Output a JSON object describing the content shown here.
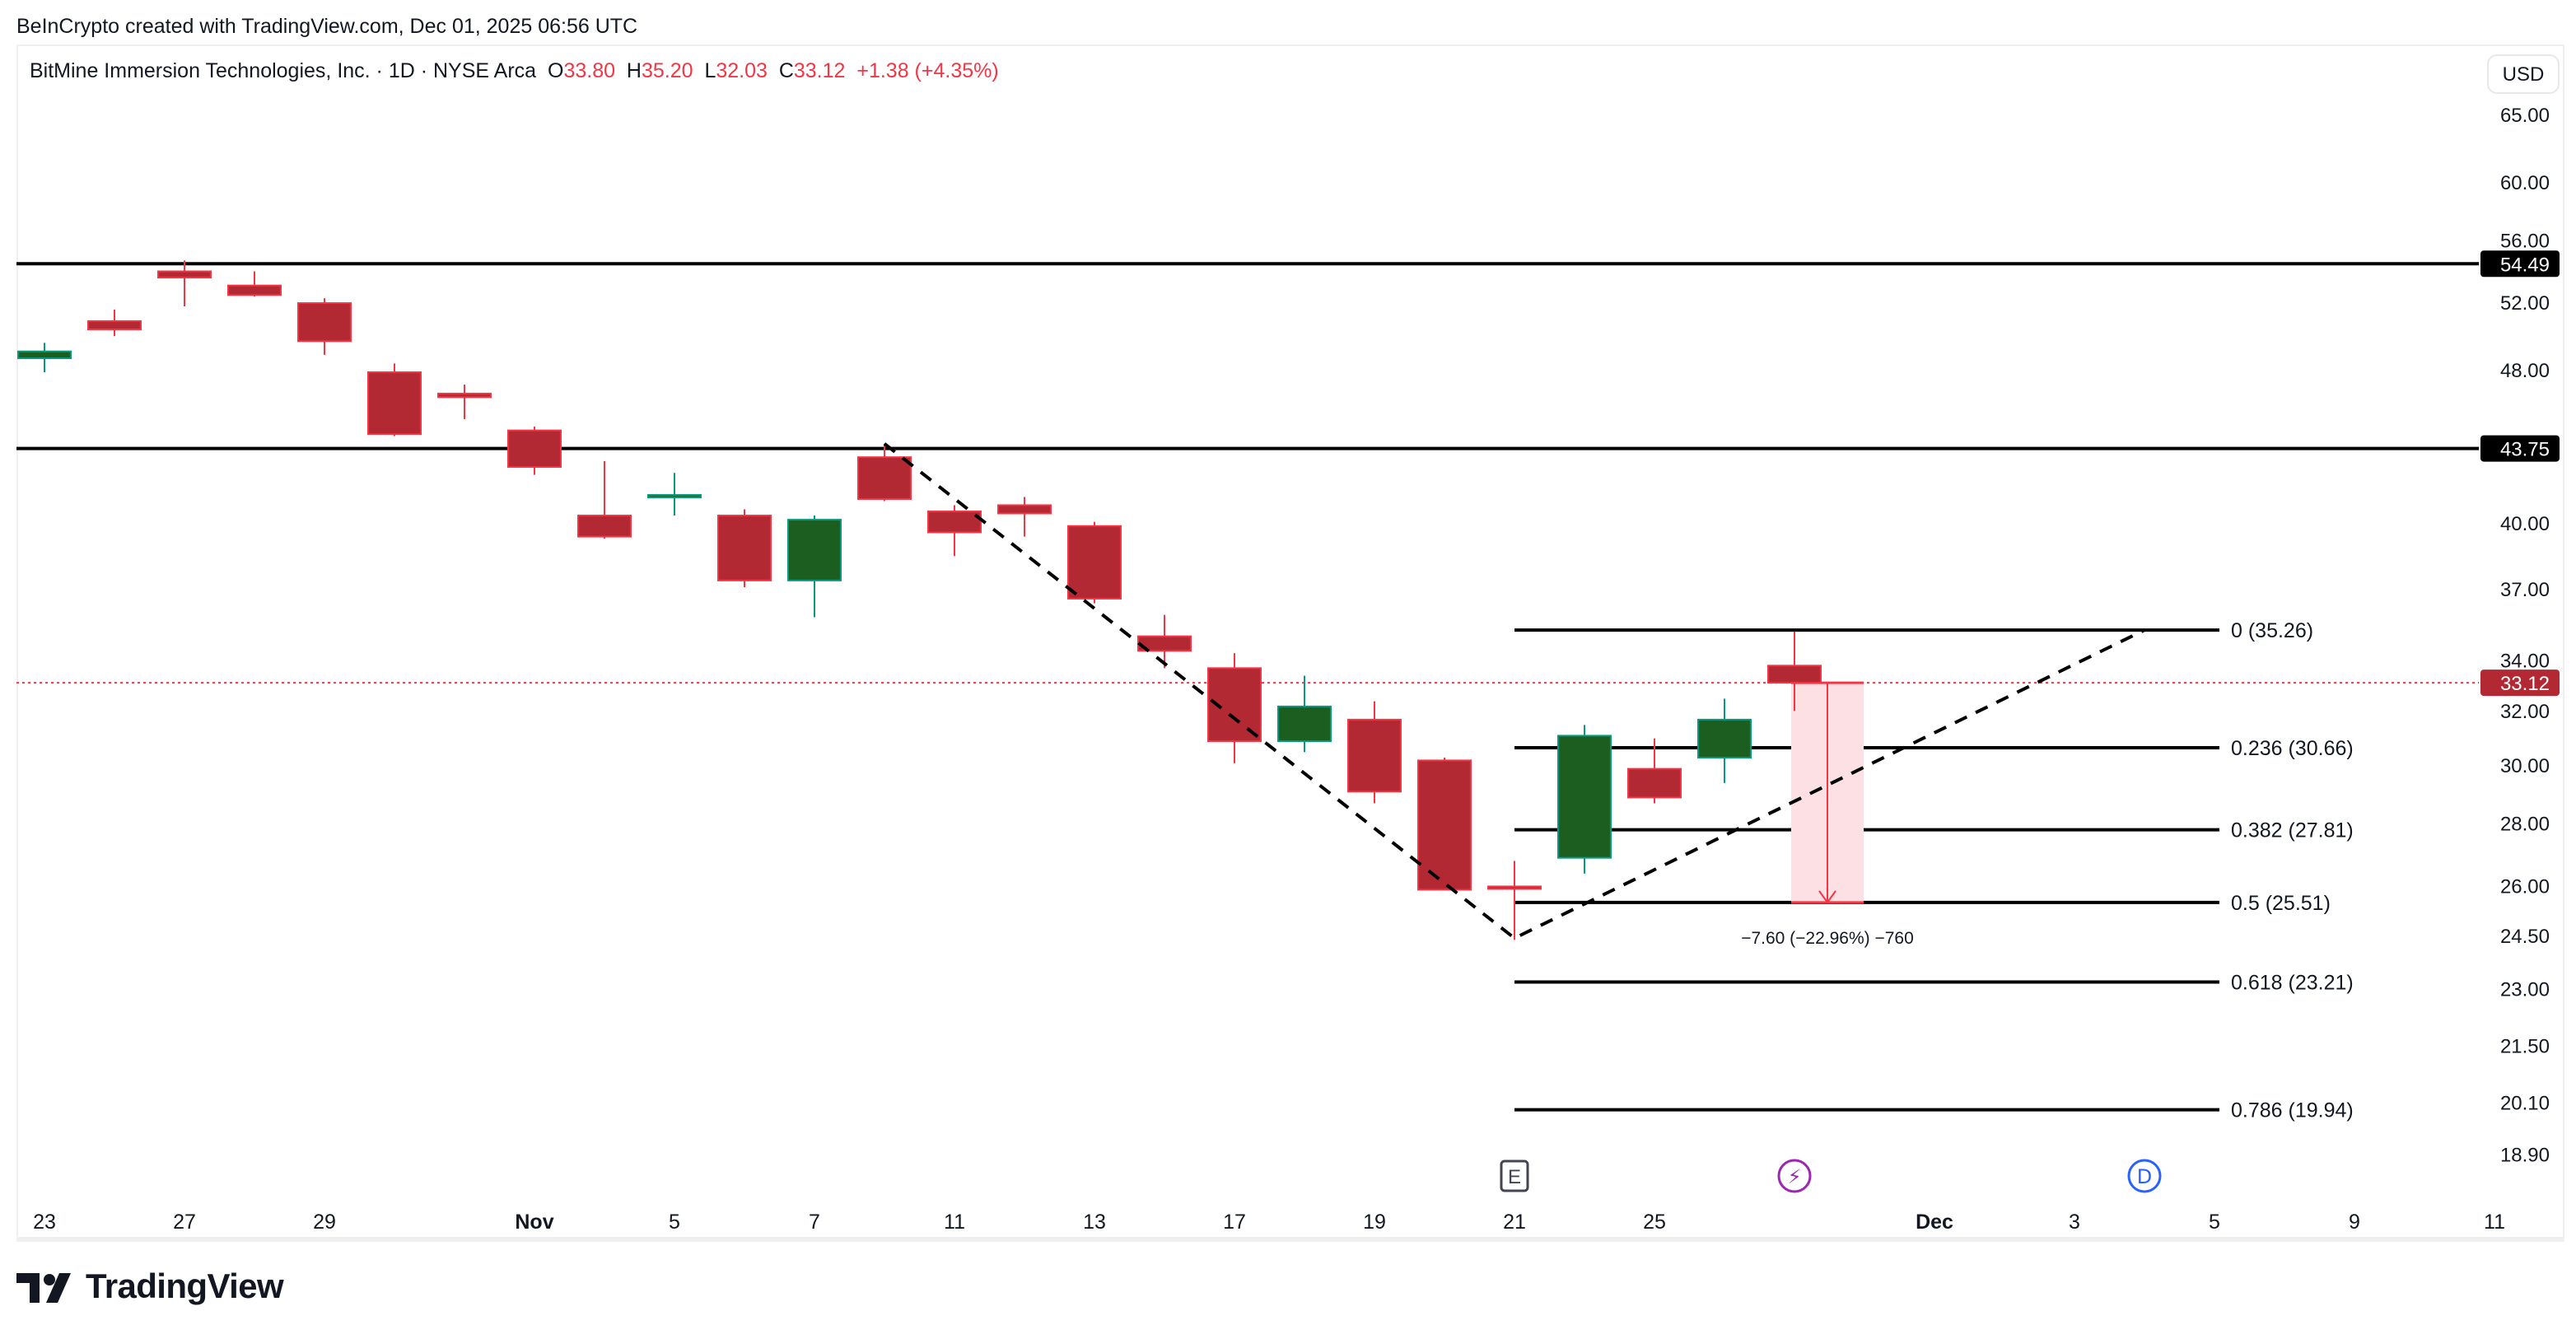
{
  "header": {
    "credit": "BeInCrypto created with TradingView.com, Dec 01, 2025 06:56 UTC"
  },
  "legend": {
    "symbol": "BitMine Immersion Technologies, Inc. · 1D · NYSE Arca",
    "o_label": "O",
    "o": "33.80",
    "h_label": "H",
    "h": "35.20",
    "l_label": "L",
    "l": "32.03",
    "c_label": "C",
    "c": "33.12",
    "change": "+1.38 (+4.35%)"
  },
  "currency": "USD",
  "footer": {
    "brand": "TradingView"
  },
  "colors": {
    "up_fill": "#1b5e20",
    "up_border": "#089981",
    "down_fill": "#b22833",
    "down_border": "#f23645",
    "measure_fill": "#fde0e3",
    "earnings": "#434651",
    "split": "#9c27b0",
    "dividend": "#2962ff"
  },
  "chart_data": {
    "type": "candlestick",
    "y_scale": "log",
    "ylim": [
      18.5,
      66
    ],
    "y_ticks": [
      "65.00",
      "60.00",
      "56.00",
      "52.00",
      "48.00",
      "40.00",
      "37.00",
      "34.00",
      "32.00",
      "30.00",
      "28.00",
      "26.00",
      "24.50",
      "23.00",
      "21.50",
      "20.10",
      "18.90"
    ],
    "x_ticks": [
      "23",
      "27",
      "29",
      "Nov",
      "5",
      "7",
      "11",
      "13",
      "17",
      "19",
      "21",
      "25",
      "Dec",
      "3",
      "5",
      "9",
      "11"
    ],
    "candles": [
      {
        "date": "2025-10-23",
        "o": 48.7,
        "h": 49.6,
        "l": 47.9,
        "c": 49.1
      },
      {
        "date": "2025-10-24",
        "o": 50.9,
        "h": 51.6,
        "l": 50.0,
        "c": 50.4
      },
      {
        "date": "2025-10-27",
        "o": 54.0,
        "h": 54.7,
        "l": 51.8,
        "c": 53.6
      },
      {
        "date": "2025-10-28",
        "o": 53.1,
        "h": 54.0,
        "l": 52.4,
        "c": 52.5
      },
      {
        "date": "2025-10-29",
        "o": 52.0,
        "h": 52.3,
        "l": 48.9,
        "c": 49.7
      },
      {
        "date": "2025-10-30",
        "o": 47.9,
        "h": 48.4,
        "l": 44.4,
        "c": 44.5
      },
      {
        "date": "2025-10-31",
        "o": 46.7,
        "h": 47.2,
        "l": 45.3,
        "c": 46.5
      },
      {
        "date": "2025-11-03",
        "o": 44.7,
        "h": 44.9,
        "l": 42.4,
        "c": 42.8
      },
      {
        "date": "2025-11-04",
        "o": 40.4,
        "h": 43.1,
        "l": 39.3,
        "c": 39.4
      },
      {
        "date": "2025-11-05",
        "o": 41.3,
        "h": 42.5,
        "l": 40.4,
        "c": 41.4
      },
      {
        "date": "2025-11-06",
        "o": 40.4,
        "h": 40.7,
        "l": 37.1,
        "c": 37.4
      },
      {
        "date": "2025-11-07",
        "o": 37.4,
        "h": 40.4,
        "l": 35.8,
        "c": 40.2
      },
      {
        "date": "2025-11-10",
        "o": 43.3,
        "h": 44.0,
        "l": 41.1,
        "c": 41.2
      },
      {
        "date": "2025-11-11",
        "o": 40.6,
        "h": 40.9,
        "l": 38.5,
        "c": 39.6
      },
      {
        "date": "2025-11-12",
        "o": 40.9,
        "h": 41.3,
        "l": 39.4,
        "c": 40.5
      },
      {
        "date": "2025-11-13",
        "o": 39.9,
        "h": 40.1,
        "l": 36.4,
        "c": 36.6
      },
      {
        "date": "2025-11-14",
        "o": 35.0,
        "h": 35.9,
        "l": 33.7,
        "c": 34.4
      },
      {
        "date": "2025-11-17",
        "o": 33.7,
        "h": 34.3,
        "l": 30.1,
        "c": 30.9
      },
      {
        "date": "2025-11-18",
        "o": 30.9,
        "h": 33.4,
        "l": 30.5,
        "c": 32.2
      },
      {
        "date": "2025-11-19",
        "o": 31.7,
        "h": 32.4,
        "l": 28.7,
        "c": 29.1
      },
      {
        "date": "2025-11-20",
        "o": 30.2,
        "h": 30.3,
        "l": 25.9,
        "c": 25.9
      },
      {
        "date": "2025-11-21",
        "o": 26.0,
        "h": 26.8,
        "l": 24.4,
        "c": 25.95
      },
      {
        "date": "2025-11-24",
        "o": 26.9,
        "h": 31.5,
        "l": 26.4,
        "c": 31.1
      },
      {
        "date": "2025-11-25",
        "o": 29.9,
        "h": 31.0,
        "l": 28.7,
        "c": 28.9
      },
      {
        "date": "2025-11-26",
        "o": 30.3,
        "h": 32.5,
        "l": 29.4,
        "c": 31.7
      },
      {
        "date": "2025-11-28",
        "o": 33.8,
        "h": 35.2,
        "l": 32.03,
        "c": 33.12
      }
    ],
    "horizontal_lines": [
      {
        "price": 54.49,
        "label": "54.49"
      },
      {
        "price": 43.75,
        "label": "43.75"
      }
    ],
    "last_price": {
      "price": 33.12,
      "label": "33.12"
    },
    "fib_levels": [
      {
        "price": 35.26,
        "label": "0 (35.26)"
      },
      {
        "price": 30.66,
        "label": "0.236 (30.66)"
      },
      {
        "price": 27.81,
        "label": "0.382 (27.81)"
      },
      {
        "price": 25.51,
        "label": "0.5 (25.51)"
      },
      {
        "price": 23.21,
        "label": "0.618 (23.21)"
      },
      {
        "price": 19.94,
        "label": "0.786 (19.94)"
      }
    ],
    "trend_path": [
      {
        "date": "2025-11-10",
        "price": 44.0
      },
      {
        "date": "2025-11-21",
        "price": 24.45
      },
      {
        "date": "2025-12-05",
        "price": 35.26
      }
    ],
    "measure": {
      "from": 33.12,
      "to": 25.51,
      "label": "−7.60 (−22.96%) −760"
    },
    "events": [
      {
        "type": "earnings",
        "glyph": "E",
        "date": "2025-11-21"
      },
      {
        "type": "split",
        "glyph": "⚡",
        "date": "2025-11-28"
      },
      {
        "type": "dividend",
        "glyph": "D",
        "date": "2025-12-05"
      }
    ]
  }
}
